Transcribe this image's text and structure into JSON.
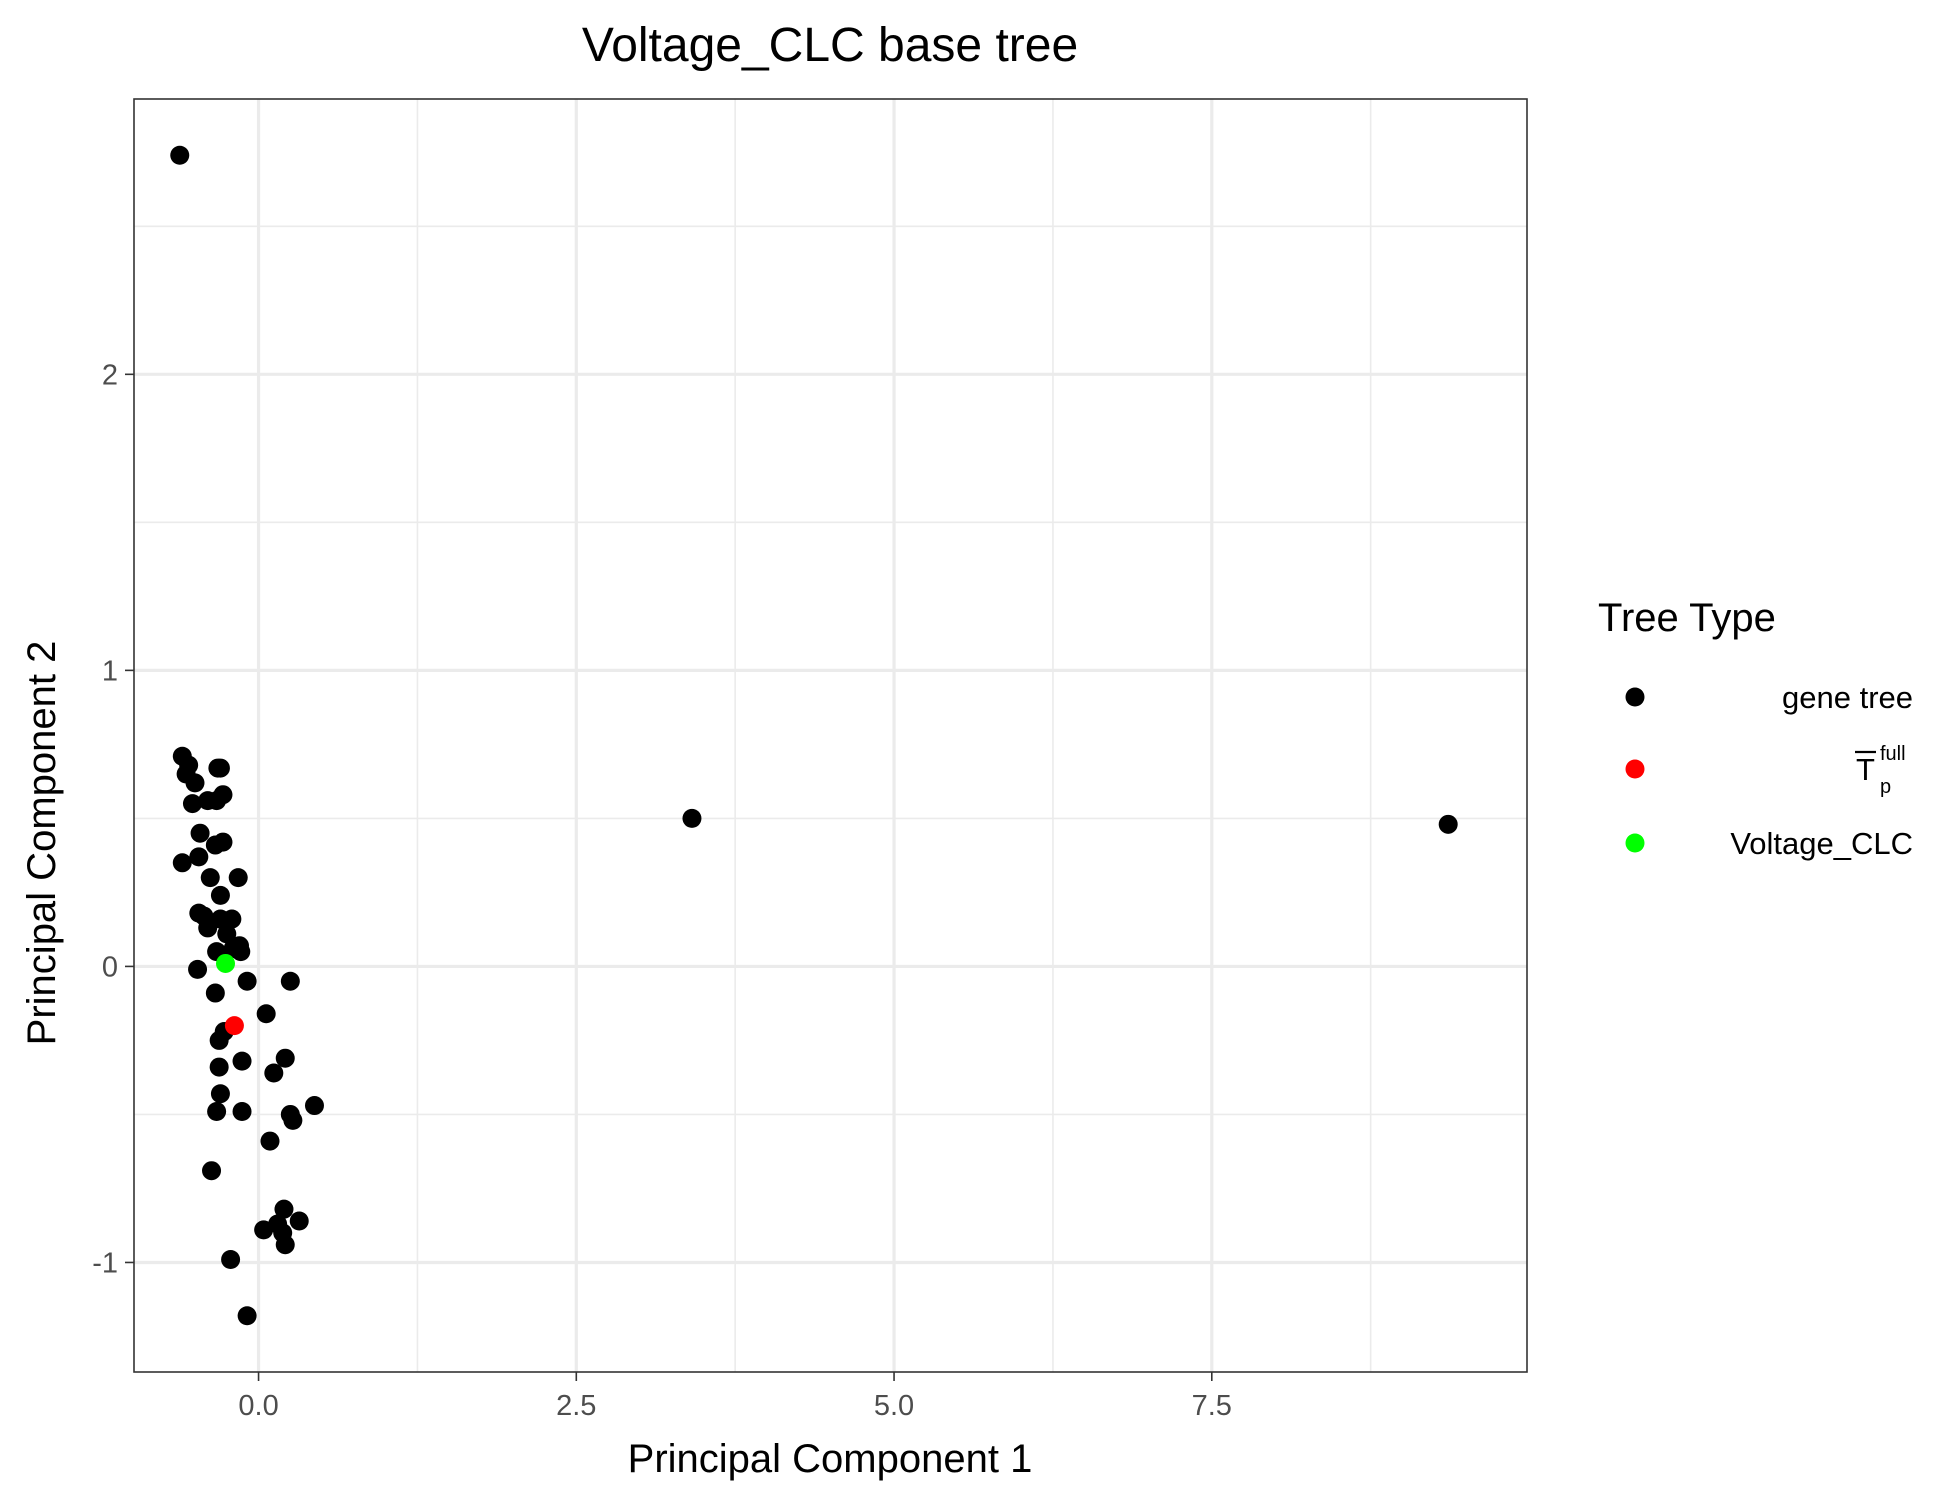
{
  "chart_data": {
    "type": "scatter",
    "title": "Voltage_CLC base tree",
    "xlabel": "Principal Component 1",
    "ylabel": "Principal Component 2",
    "xlim": [
      -0.98,
      9.98
    ],
    "ylim": [
      -1.37,
      2.93
    ],
    "x_ticks": [
      0.0,
      2.5,
      5.0,
      7.5
    ],
    "x_tick_labels": [
      "0.0",
      "2.5",
      "5.0",
      "7.5"
    ],
    "y_ticks": [
      -1,
      0,
      1,
      2
    ],
    "y_tick_labels": [
      "-1",
      "0",
      "1",
      "2"
    ],
    "grid": true,
    "legend": {
      "title": "Tree Type",
      "position": "right",
      "entries": [
        {
          "label": "gene tree",
          "color": "#000000"
        },
        {
          "label": "T",
          "sup": "full",
          "sub": "p",
          "overline": true,
          "color": "#ff0000"
        },
        {
          "label": "Voltage_CLC",
          "color": "#00ff00"
        }
      ]
    },
    "series": [
      {
        "name": "gene tree",
        "color": "#000000",
        "points": [
          [
            -0.62,
            2.74
          ],
          [
            3.41,
            0.5
          ],
          [
            9.36,
            0.48
          ],
          [
            -0.6,
            0.71
          ],
          [
            -0.55,
            0.68
          ],
          [
            -0.57,
            0.65
          ],
          [
            -0.5,
            0.62
          ],
          [
            -0.32,
            0.67
          ],
          [
            -0.3,
            0.67
          ],
          [
            -0.28,
            0.58
          ],
          [
            -0.52,
            0.55
          ],
          [
            -0.4,
            0.56
          ],
          [
            -0.33,
            0.56
          ],
          [
            -0.46,
            0.45
          ],
          [
            -0.34,
            0.41
          ],
          [
            -0.28,
            0.42
          ],
          [
            -0.6,
            0.35
          ],
          [
            -0.47,
            0.37
          ],
          [
            -0.38,
            0.3
          ],
          [
            -0.16,
            0.3
          ],
          [
            -0.3,
            0.24
          ],
          [
            -0.47,
            0.18
          ],
          [
            -0.43,
            0.17
          ],
          [
            -0.3,
            0.16
          ],
          [
            -0.21,
            0.16
          ],
          [
            -0.4,
            0.13
          ],
          [
            -0.25,
            0.11
          ],
          [
            -0.15,
            0.07
          ],
          [
            -0.2,
            0.06
          ],
          [
            -0.14,
            0.05
          ],
          [
            -0.33,
            0.05
          ],
          [
            -0.48,
            -0.01
          ],
          [
            -0.09,
            -0.05
          ],
          [
            0.25,
            -0.05
          ],
          [
            -0.34,
            -0.09
          ],
          [
            0.06,
            -0.16
          ],
          [
            0.21,
            -0.31
          ],
          [
            -0.13,
            -0.32
          ],
          [
            -0.31,
            -0.25
          ],
          [
            -0.27,
            -0.22
          ],
          [
            -0.31,
            -0.34
          ],
          [
            0.12,
            -0.36
          ],
          [
            -0.3,
            -0.43
          ],
          [
            -0.33,
            -0.49
          ],
          [
            -0.13,
            -0.49
          ],
          [
            0.25,
            -0.5
          ],
          [
            0.27,
            -0.52
          ],
          [
            0.44,
            -0.47
          ],
          [
            0.09,
            -0.59
          ],
          [
            -0.37,
            -0.69
          ],
          [
            0.2,
            -0.82
          ],
          [
            0.32,
            -0.86
          ],
          [
            0.15,
            -0.87
          ],
          [
            0.04,
            -0.89
          ],
          [
            0.19,
            -0.9
          ],
          [
            0.21,
            -0.94
          ],
          [
            -0.22,
            -0.99
          ],
          [
            -0.09,
            -1.18
          ]
        ]
      },
      {
        "name": "T_p^full",
        "color": "#ff0000",
        "points": [
          [
            -0.19,
            -0.2
          ]
        ]
      },
      {
        "name": "Voltage_CLC",
        "color": "#00ff00",
        "points": [
          [
            -0.26,
            0.01
          ]
        ]
      }
    ]
  }
}
